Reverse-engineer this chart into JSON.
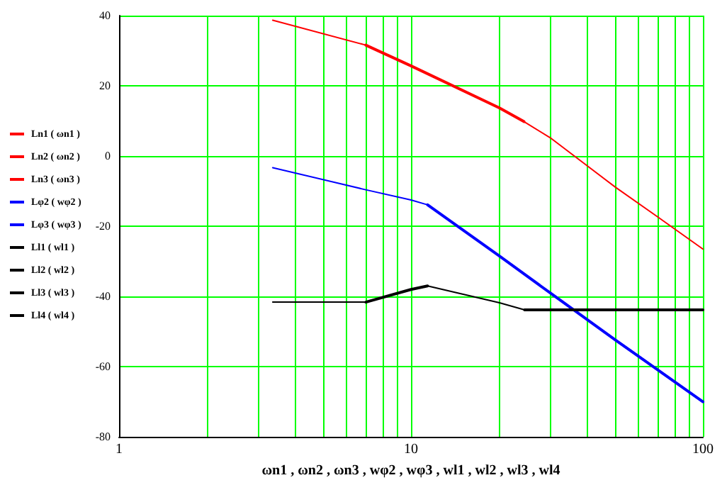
{
  "chart_data": {
    "type": "line",
    "xlabel": "ωn1 , ωn2 , ωn3 , wφ2 , wφ3 , wl1 , wl2 , wl3 , wl4",
    "log": "x",
    "grid": true,
    "legend": "left",
    "marker": "none",
    "line_style": "solid",
    "xlim": [
      1,
      100
    ],
    "xticks": [
      1,
      {
        "value": 2,
        "label": null
      },
      {
        "value": 3,
        "label": null
      },
      {
        "value": 4,
        "label": null
      },
      {
        "value": 5,
        "label": null
      },
      {
        "value": 6,
        "label": null
      },
      {
        "value": 7,
        "label": null
      },
      {
        "value": 8,
        "label": null
      },
      {
        "value": 9,
        "label": null
      },
      10,
      {
        "value": 20,
        "label": null
      },
      {
        "value": 30,
        "label": null
      },
      {
        "value": 40,
        "label": null
      },
      {
        "value": 50,
        "label": null
      },
      {
        "value": 60,
        "label": null
      },
      {
        "value": 70,
        "label": null
      },
      {
        "value": 80,
        "label": null
      },
      {
        "value": 90,
        "label": null
      },
      100
    ],
    "ylim": [
      -80,
      40
    ],
    "yticks": [
      -80,
      -60,
      -40,
      -20,
      0,
      20,
      40
    ],
    "series": [
      {
        "name": "Ln1 ( ωn1 )",
        "color": "#ff0000",
        "x": [
          3.36,
          7.0
        ],
        "values": [
          38.7,
          31.6
        ]
      },
      {
        "name": "Ln2 ( ωn2 )",
        "color": "#ff0000",
        "x": [
          7.0,
          10,
          20.1,
          24.4
        ],
        "values": [
          31.6,
          25.7,
          13.7,
          9.8
        ]
      },
      {
        "name": "Ln3 ( ωn3 )",
        "color": "#ff0000",
        "x": [
          24.4,
          30,
          36.8,
          50.2,
          70.2,
          100
        ],
        "values": [
          9.8,
          5.2,
          -0.4,
          -8.9,
          -17.4,
          -26.5
        ]
      },
      {
        "name": "Lφ2 ( wφ2 )",
        "color": "#0000ff",
        "x": [
          3.36,
          7.0,
          10,
          11.4
        ],
        "values": [
          -3.3,
          -9.6,
          -12.5,
          -13.9
        ]
      },
      {
        "name": "Lφ3 ( wφ3 )",
        "color": "#0000ff",
        "x": [
          11.4,
          20.1,
          30,
          50.2,
          100
        ],
        "values": [
          -13.9,
          -28.5,
          -39.0,
          -52.4,
          -70.0
        ]
      },
      {
        "name": "Ll1 ( wl1 )",
        "color": "#000000",
        "x": [
          3.36,
          7.0
        ],
        "values": [
          -41.6,
          -41.6
        ]
      },
      {
        "name": "Ll2 ( wl2 )",
        "color": "#000000",
        "x": [
          7.0,
          10,
          11.4
        ],
        "values": [
          -41.6,
          -38.0,
          -37.0
        ]
      },
      {
        "name": "Ll3 ( wl3 )",
        "color": "#000000",
        "x": [
          11.4,
          20.1,
          24.5
        ],
        "values": [
          -37.0,
          -41.8,
          -43.8
        ]
      },
      {
        "name": "Ll4 ( wl4 )",
        "color": "#000000",
        "x": [
          24.5,
          100
        ],
        "values": [
          -43.8,
          -43.8
        ]
      }
    ]
  }
}
